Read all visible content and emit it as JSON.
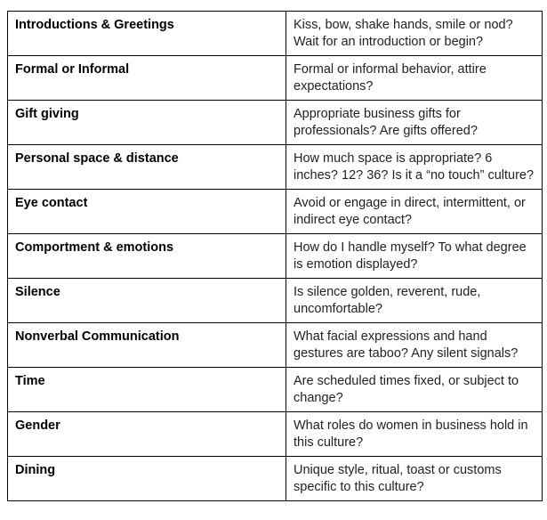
{
  "rows": [
    {
      "topic": "Introductions & Greetings",
      "question": "Kiss, bow, shake hands, smile or nod? Wait for an introduction or begin?"
    },
    {
      "topic": "Formal or Informal",
      "question": "Formal or informal behavior, attire expectations?"
    },
    {
      "topic": "Gift giving",
      "question": "Appropriate business gifts for professionals? Are gifts offered?"
    },
    {
      "topic": "Personal space & distance",
      "question": "How much space is appropriate? 6 inches? 12? 36? Is it a “no touch” culture?"
    },
    {
      "topic": "Eye contact",
      "question": "Avoid or engage in direct, intermittent, or indirect eye contact?"
    },
    {
      "topic": "Comportment & emotions",
      "question": "How do I handle myself? To what degree is emotion displayed?"
    },
    {
      "topic": "Silence",
      "question": "Is silence golden, reverent, rude, uncomfortable?"
    },
    {
      "topic": "Nonverbal Communication",
      "question": "What facial expressions and hand gestures are taboo? Any silent signals?"
    },
    {
      "topic": "Time",
      "question": "Are scheduled times fixed, or subject to change?"
    },
    {
      "topic": "Gender",
      "question": "What roles do women in business hold in this culture?"
    },
    {
      "topic": "Dining",
      "question": "Unique style, ritual, toast or customs specific to this culture?"
    }
  ]
}
